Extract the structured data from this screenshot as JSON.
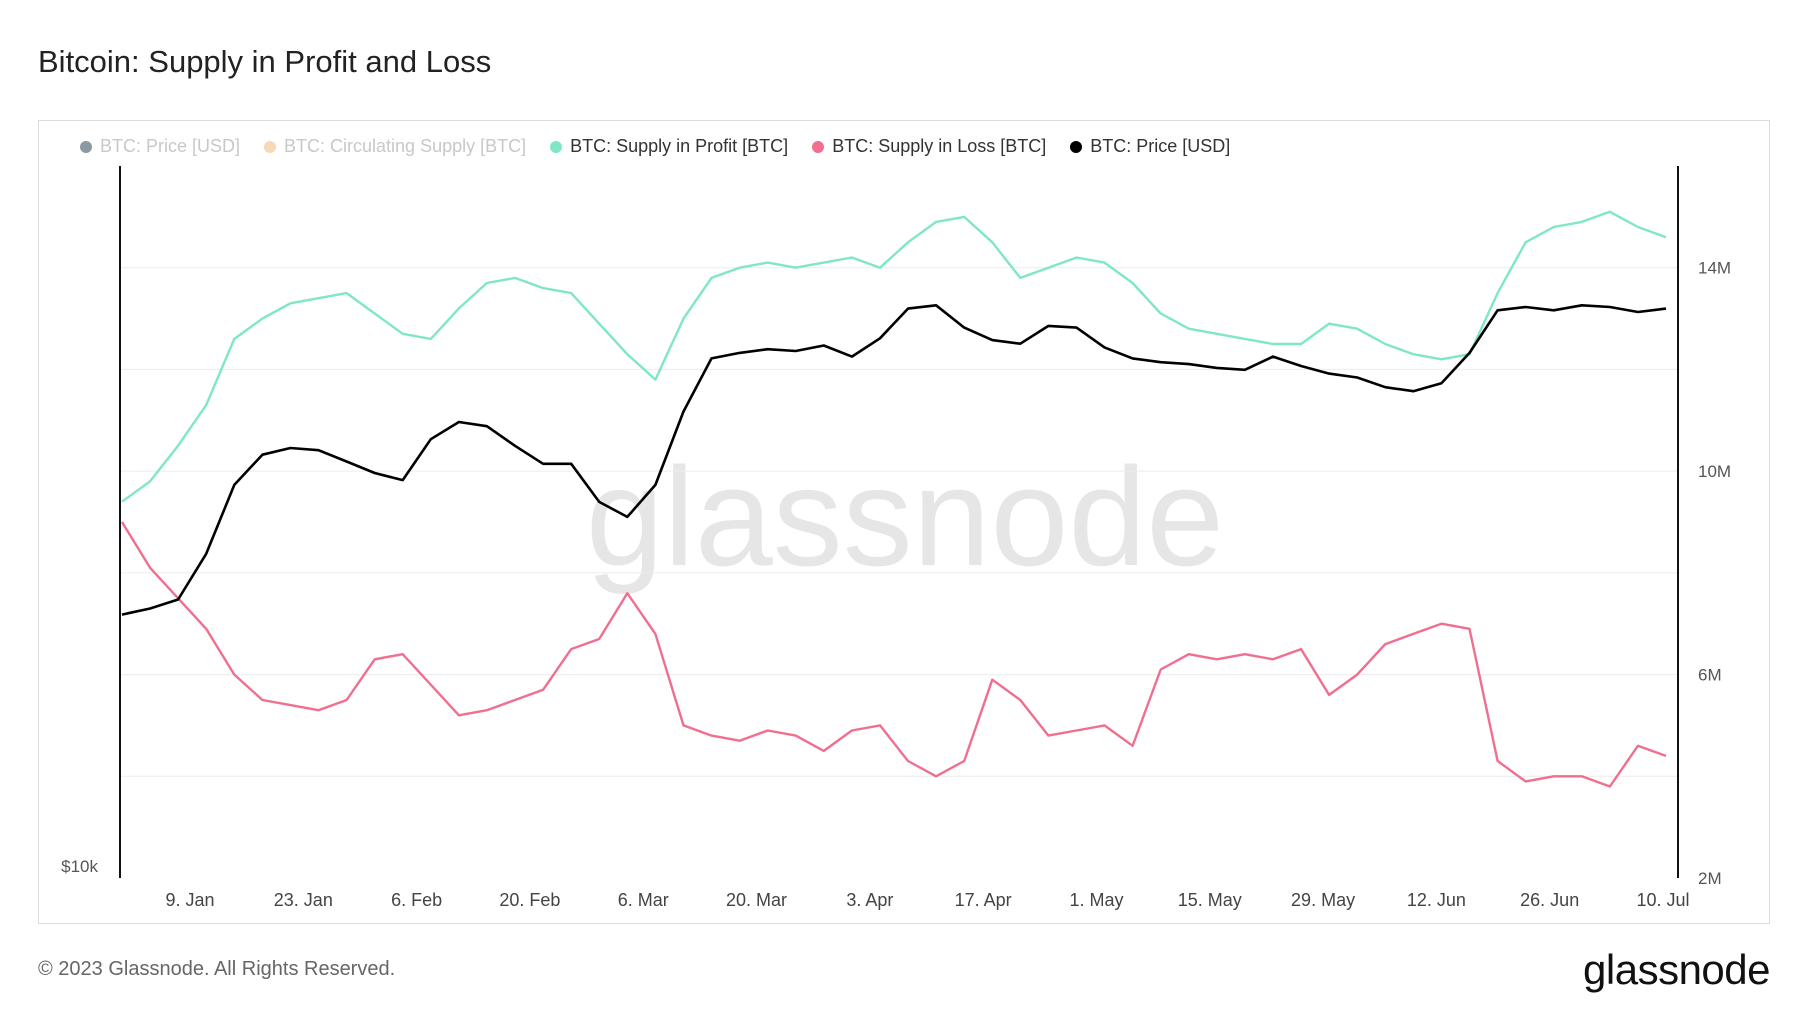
{
  "page": {
    "title": "Bitcoin: Supply in Profit and Loss",
    "footer": "© 2023 Glassnode. All Rights Reserved.",
    "brand": "glassnode",
    "watermark": "glassnode"
  },
  "legend": [
    {
      "label": "BTC: Price [USD]",
      "color": "#8a9aa3",
      "muted": true
    },
    {
      "label": "BTC: Circulating Supply [BTC]",
      "color": "#f7d9b5",
      "muted": true
    },
    {
      "label": "BTC: Supply in Profit [BTC]",
      "color": "#7fe6c8",
      "muted": false
    },
    {
      "label": "BTC: Supply in Loss [BTC]",
      "color": "#f06f8e",
      "muted": false
    },
    {
      "label": "BTC: Price [USD]",
      "color": "#000000",
      "muted": false
    }
  ],
  "chart_data": {
    "type": "line",
    "x_ticks": [
      "9. Jan",
      "23. Jan",
      "6. Feb",
      "20. Feb",
      "6. Mar",
      "20. Mar",
      "3. Apr",
      "17. Apr",
      "1. May",
      "15. May",
      "29. May",
      "12. Jun",
      "26. Jun",
      "10. Jul"
    ],
    "left_axis": {
      "ticks": [
        "$10k"
      ],
      "scale": "log"
    },
    "right_axis": {
      "ticks": [
        "2M",
        "6M",
        "10M",
        "14M"
      ],
      "ylim": [
        2000000,
        16000000
      ]
    },
    "grid": true,
    "legend_position": "top-left",
    "series": [
      {
        "name": "BTC: Supply in Profit [BTC]",
        "axis": "right",
        "color": "#7fe6c8",
        "values": [
          9.4,
          9.8,
          10.5,
          11.3,
          12.6,
          13.0,
          13.3,
          13.4,
          13.5,
          13.1,
          12.7,
          12.6,
          13.2,
          13.7,
          13.8,
          13.6,
          13.5,
          12.9,
          12.3,
          11.8,
          13.0,
          13.8,
          14.0,
          14.1,
          14.0,
          14.1,
          14.2,
          14.0,
          14.5,
          14.9,
          15.0,
          14.5,
          13.8,
          14.0,
          14.2,
          14.1,
          13.7,
          13.1,
          12.8,
          12.7,
          12.6,
          12.5,
          12.5,
          12.9,
          12.8,
          12.5,
          12.3,
          12.2,
          12.3,
          13.5,
          14.5,
          14.8,
          14.9,
          15.1,
          14.8,
          14.6
        ]
      },
      {
        "name": "BTC: Supply in Loss [BTC]",
        "axis": "right",
        "color": "#f06f8e",
        "values": [
          9.0,
          8.1,
          7.5,
          6.9,
          6.0,
          5.5,
          5.4,
          5.3,
          5.5,
          6.3,
          6.4,
          5.8,
          5.2,
          5.3,
          5.5,
          5.7,
          6.5,
          6.7,
          7.6,
          6.8,
          5.0,
          4.8,
          4.7,
          4.9,
          4.8,
          4.5,
          4.9,
          5.0,
          4.3,
          4.0,
          4.3,
          5.9,
          5.5,
          4.8,
          4.9,
          5.0,
          4.6,
          6.1,
          6.4,
          6.3,
          6.4,
          6.3,
          6.5,
          5.6,
          6.0,
          6.6,
          6.8,
          7.0,
          6.9,
          4.3,
          3.9,
          4.0,
          4.0,
          3.8,
          4.6,
          4.4
        ]
      },
      {
        "name": "BTC: Price [USD]",
        "axis": "left",
        "color": "#000000",
        "values": [
          16700,
          16900,
          17200,
          18800,
          21500,
          22800,
          23100,
          23000,
          22500,
          22000,
          21700,
          23500,
          24300,
          24100,
          23200,
          22400,
          22400,
          20800,
          20200,
          21500,
          24800,
          27500,
          27800,
          28000,
          27900,
          28200,
          27600,
          28600,
          30300,
          30500,
          29200,
          28500,
          28300,
          29300,
          29200,
          28100,
          27500,
          27300,
          27200,
          27000,
          26900,
          27600,
          27100,
          26700,
          26500,
          26000,
          25800,
          26200,
          27800,
          30200,
          30400,
          30200,
          30500,
          30400,
          30100,
          30300
        ]
      }
    ]
  }
}
